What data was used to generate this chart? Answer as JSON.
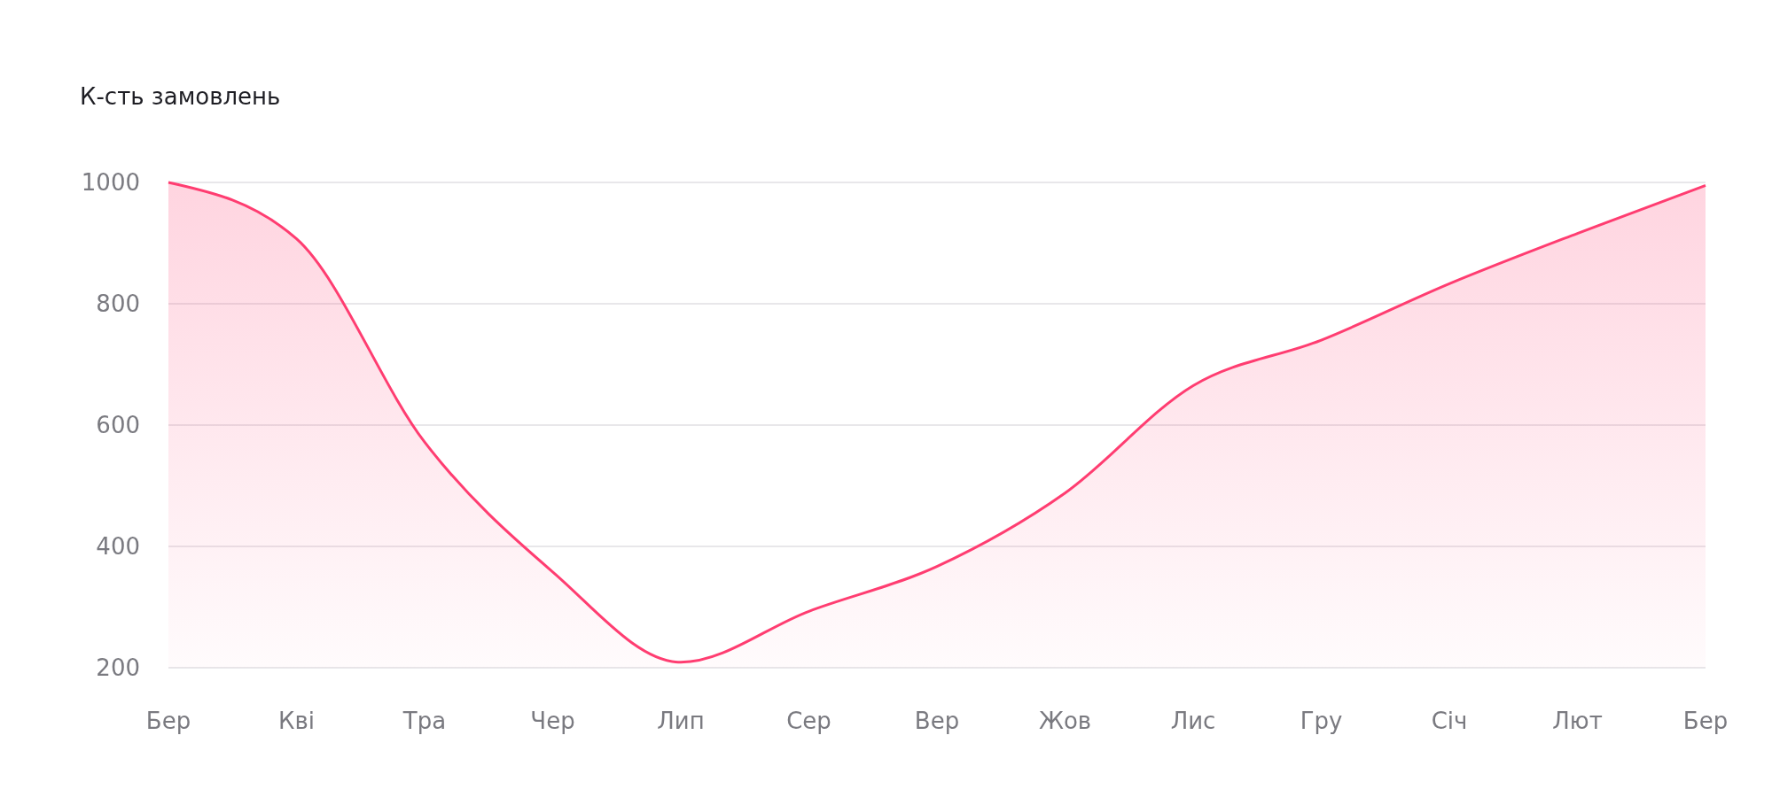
{
  "chart_data": {
    "type": "area",
    "ylabel": "К-сть замовлень",
    "categories": [
      "Бер",
      "Кві",
      "Тра",
      "Чер",
      "Лип",
      "Сер",
      "Вер",
      "Жов",
      "Лис",
      "Гру",
      "Січ",
      "Лют",
      "Бер"
    ],
    "series": [
      {
        "color": "#ff3d71",
        "values": [
          1000,
          907,
          572,
          358,
          209,
          293,
          367,
          488,
          665,
          740,
          833,
          916,
          995
        ]
      }
    ],
    "ylim": [
      200,
      1000
    ],
    "yticks": [
      200,
      400,
      600,
      800,
      1000
    ],
    "grid": "y"
  }
}
